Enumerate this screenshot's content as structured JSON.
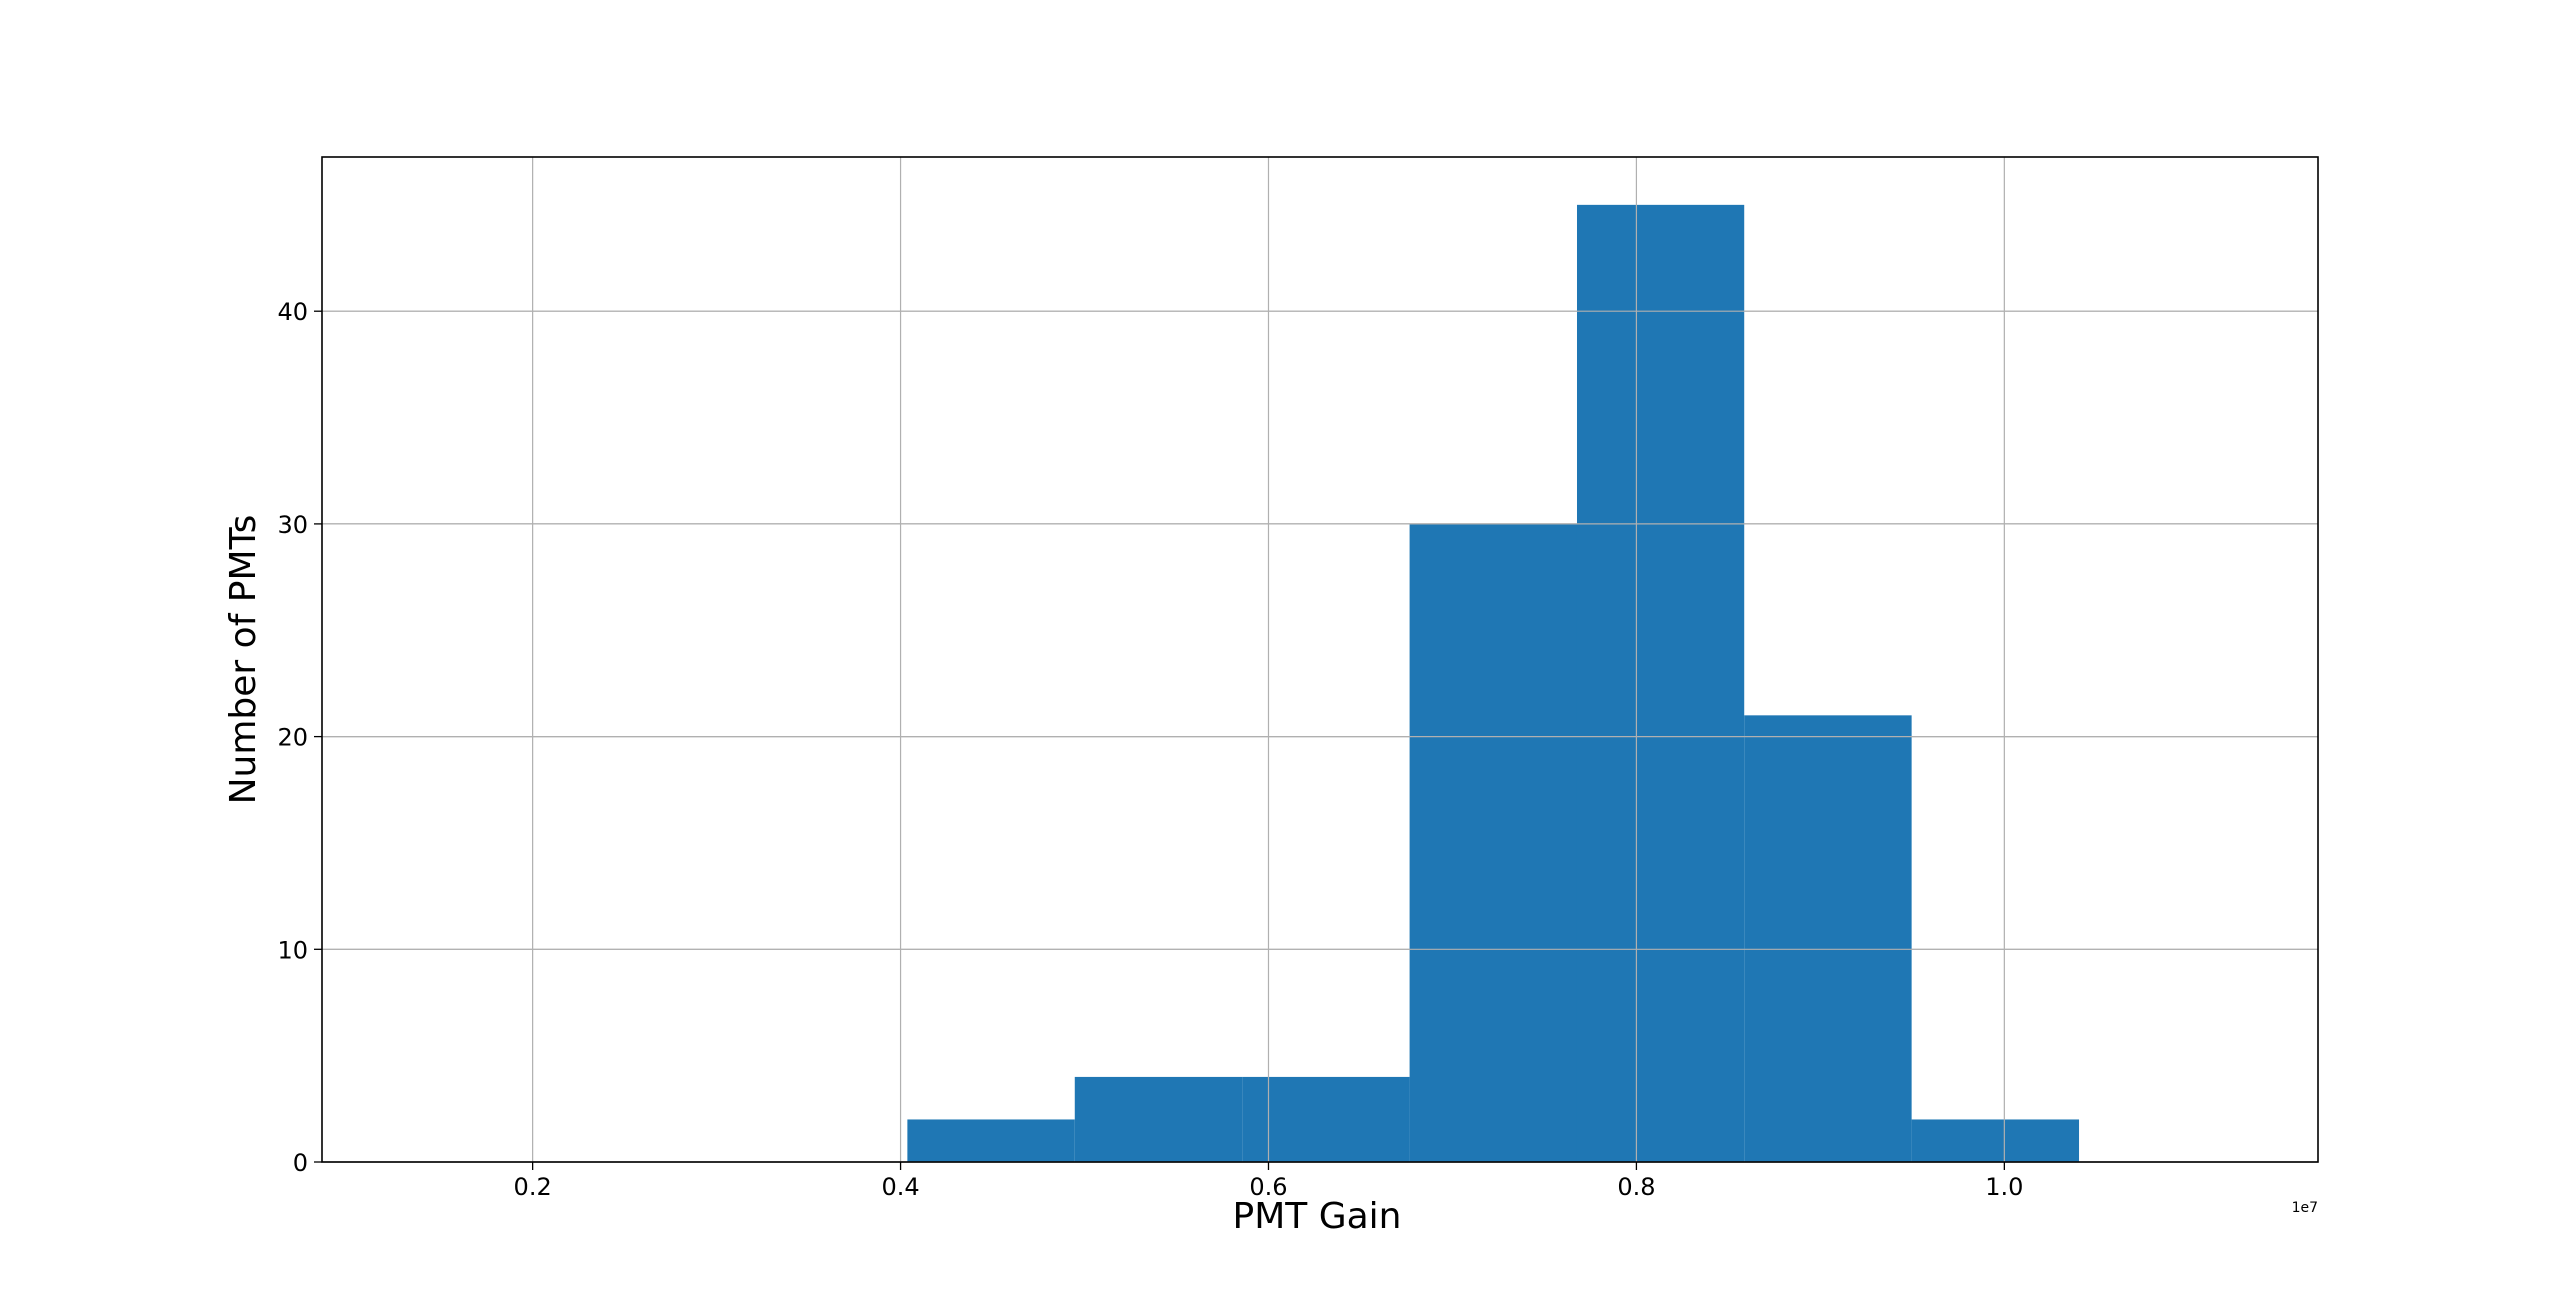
{
  "chart_data": {
    "type": "histogram",
    "title": "",
    "xlabel": "PMT Gain",
    "ylabel": "Number of PMTs",
    "x_offset_label": "1e7",
    "xlim": [
      0.0855,
      1.1705
    ],
    "ylim": [
      0,
      47.25
    ],
    "grid": true,
    "bar_color": "#1f77b4",
    "x_ticks": [
      {
        "value": 0.2,
        "label": "0.2"
      },
      {
        "value": 0.4,
        "label": "0.4"
      },
      {
        "value": 0.6,
        "label": "0.6"
      },
      {
        "value": 0.8,
        "label": "0.8"
      },
      {
        "value": 1.0,
        "label": "1.0"
      }
    ],
    "y_ticks": [
      {
        "value": 0,
        "label": "0"
      },
      {
        "value": 10,
        "label": "10"
      },
      {
        "value": 20,
        "label": "20"
      },
      {
        "value": 30,
        "label": "30"
      },
      {
        "value": 40,
        "label": "40"
      }
    ],
    "bins": [
      {
        "start": 0.4037,
        "end": 0.4947,
        "count": 2
      },
      {
        "start": 0.4947,
        "end": 0.5857,
        "count": 4
      },
      {
        "start": 0.5857,
        "end": 0.6767,
        "count": 4
      },
      {
        "start": 0.6767,
        "end": 0.7677,
        "count": 30
      },
      {
        "start": 0.7677,
        "end": 0.8586,
        "count": 45
      },
      {
        "start": 0.8586,
        "end": 0.9496,
        "count": 21
      },
      {
        "start": 0.9496,
        "end": 1.0406,
        "count": 2
      }
    ]
  }
}
